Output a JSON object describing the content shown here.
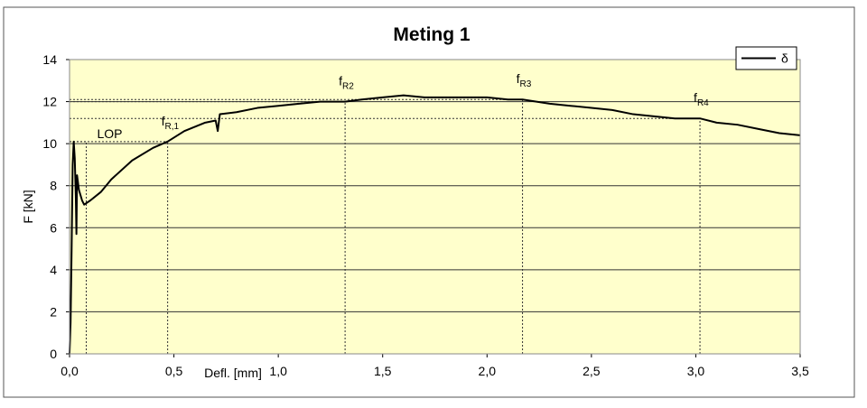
{
  "chart_data": {
    "type": "line",
    "title": "Meting 1",
    "x_label": "Defl. [mm]",
    "y_label": "F [kN]",
    "xlim": [
      0,
      3.5
    ],
    "ylim": [
      0,
      14
    ],
    "xticks": [
      {
        "value": 0,
        "label": "0,0"
      },
      {
        "value": 0.5,
        "label": "0,5"
      },
      {
        "value": 1,
        "label": "1,0"
      },
      {
        "value": 1.5,
        "label": "1,5"
      },
      {
        "value": 2,
        "label": "2,0"
      },
      {
        "value": 2.5,
        "label": "2,5"
      },
      {
        "value": 3,
        "label": "3,0"
      },
      {
        "value": 3.5,
        "label": "3,5"
      }
    ],
    "yticks": [
      0,
      2,
      4,
      6,
      8,
      10,
      12,
      14
    ],
    "grid": true,
    "legend": "upper right",
    "plot_background": "#ffffcc",
    "x": [
      0,
      0.005,
      0.01,
      0.015,
      0.02,
      0.025,
      0.03,
      0.033,
      0.036,
      0.045,
      0.06,
      0.07,
      0.1,
      0.15,
      0.2,
      0.3,
      0.4,
      0.47,
      0.55,
      0.65,
      0.7,
      0.71,
      0.72,
      0.8,
      0.9,
      1.0,
      1.1,
      1.2,
      1.32,
      1.4,
      1.5,
      1.6,
      1.7,
      1.8,
      1.9,
      2.0,
      2.1,
      2.17,
      2.3,
      2.4,
      2.5,
      2.6,
      2.7,
      2.8,
      2.9,
      3.02,
      3.1,
      3.2,
      3.3,
      3.4,
      3.5
    ],
    "series": [
      {
        "name": "δ",
        "color": "#000000",
        "values": [
          0,
          1.5,
          5,
          9,
          10.1,
          9.3,
          7.5,
          5.7,
          8.5,
          7.8,
          7.3,
          7.1,
          7.3,
          7.7,
          8.3,
          9.2,
          9.8,
          10.1,
          10.6,
          11.0,
          11.1,
          10.6,
          11.4,
          11.5,
          11.7,
          11.8,
          11.9,
          12.0,
          12.0,
          12.1,
          12.2,
          12.3,
          12.2,
          12.2,
          12.2,
          12.2,
          12.1,
          12.1,
          11.9,
          11.8,
          11.7,
          11.6,
          11.4,
          11.3,
          11.2,
          11.2,
          11.0,
          10.9,
          10.7,
          10.5,
          10.4
        ]
      }
    ],
    "annotations": [
      {
        "label": "LOP",
        "x": 0.08,
        "y": 10.1
      },
      {
        "label": "f",
        "sub": "R,1",
        "x": 0.47,
        "y": 10.1
      },
      {
        "label": "f",
        "sub": "R2",
        "x": 1.32,
        "y": 12.0
      },
      {
        "label": "f",
        "sub": "R3",
        "x": 2.17,
        "y": 12.1
      },
      {
        "label": "f",
        "sub": "R4",
        "x": 3.02,
        "y": 11.2
      }
    ]
  }
}
